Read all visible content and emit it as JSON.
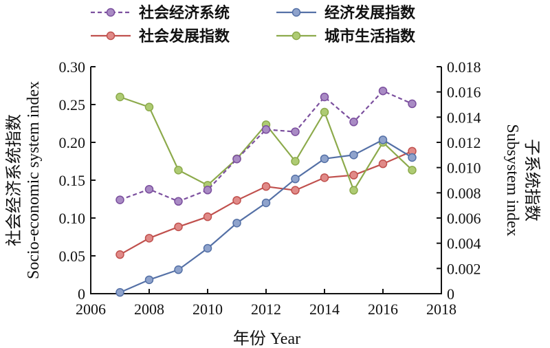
{
  "chart_data": {
    "type": "line",
    "x": [
      2007,
      2008,
      2009,
      2010,
      2011,
      2012,
      2013,
      2014,
      2015,
      2016,
      2017
    ],
    "xlabel": "年份 Year",
    "xlim": [
      2006,
      2018
    ],
    "xticks": [
      2006,
      2008,
      2010,
      2012,
      2014,
      2016,
      2018
    ],
    "ylabel_left": [
      "社会经济系统指数",
      "Socio-economic system index"
    ],
    "ylim_left": [
      0,
      0.3
    ],
    "yticks_left": [
      "0",
      "0.05",
      "0.10",
      "0.15",
      "0.20",
      "0.25",
      "0.30"
    ],
    "ylabel_right": [
      "子系统指数",
      "Subsystem index"
    ],
    "ylim_right": [
      0,
      0.018
    ],
    "yticks_right": [
      "0",
      "0.002",
      "0.004",
      "0.006",
      "0.008",
      "0.010",
      "0.012",
      "0.014",
      "0.016",
      "0.018"
    ],
    "grid": false,
    "legend_position": "top",
    "series": [
      {
        "name": "社会经济系统",
        "axis": "left",
        "color": "#7B4F9E",
        "marker_color": "#A98BC4",
        "dashed": true,
        "values": [
          0.124,
          0.138,
          0.122,
          0.137,
          0.178,
          0.217,
          0.214,
          0.26,
          0.227,
          0.268,
          0.251
        ]
      },
      {
        "name": "经济发展指数",
        "axis": "right",
        "color": "#5470A6",
        "marker_color": "#8FA3CC",
        "dashed": false,
        "values": [
          0.0001,
          0.0011,
          0.0019,
          0.0036,
          0.0056,
          0.0072,
          0.0091,
          0.0107,
          0.011,
          0.0122,
          0.0108
        ]
      },
      {
        "name": "社会发展指数",
        "axis": "right",
        "color": "#C0504D",
        "marker_color": "#E08A88",
        "dashed": false,
        "values": [
          0.0031,
          0.0044,
          0.0053,
          0.0061,
          0.0074,
          0.0085,
          0.0082,
          0.0092,
          0.0094,
          0.0103,
          0.0113
        ]
      },
      {
        "name": "城市生活指数",
        "axis": "right",
        "color": "#8CAA4B",
        "marker_color": "#AECB73",
        "dashed": false,
        "values": [
          0.0156,
          0.0148,
          0.0098,
          0.0086,
          0.0107,
          0.0134,
          0.0105,
          0.0144,
          0.0082,
          0.012,
          0.0098
        ]
      }
    ]
  }
}
